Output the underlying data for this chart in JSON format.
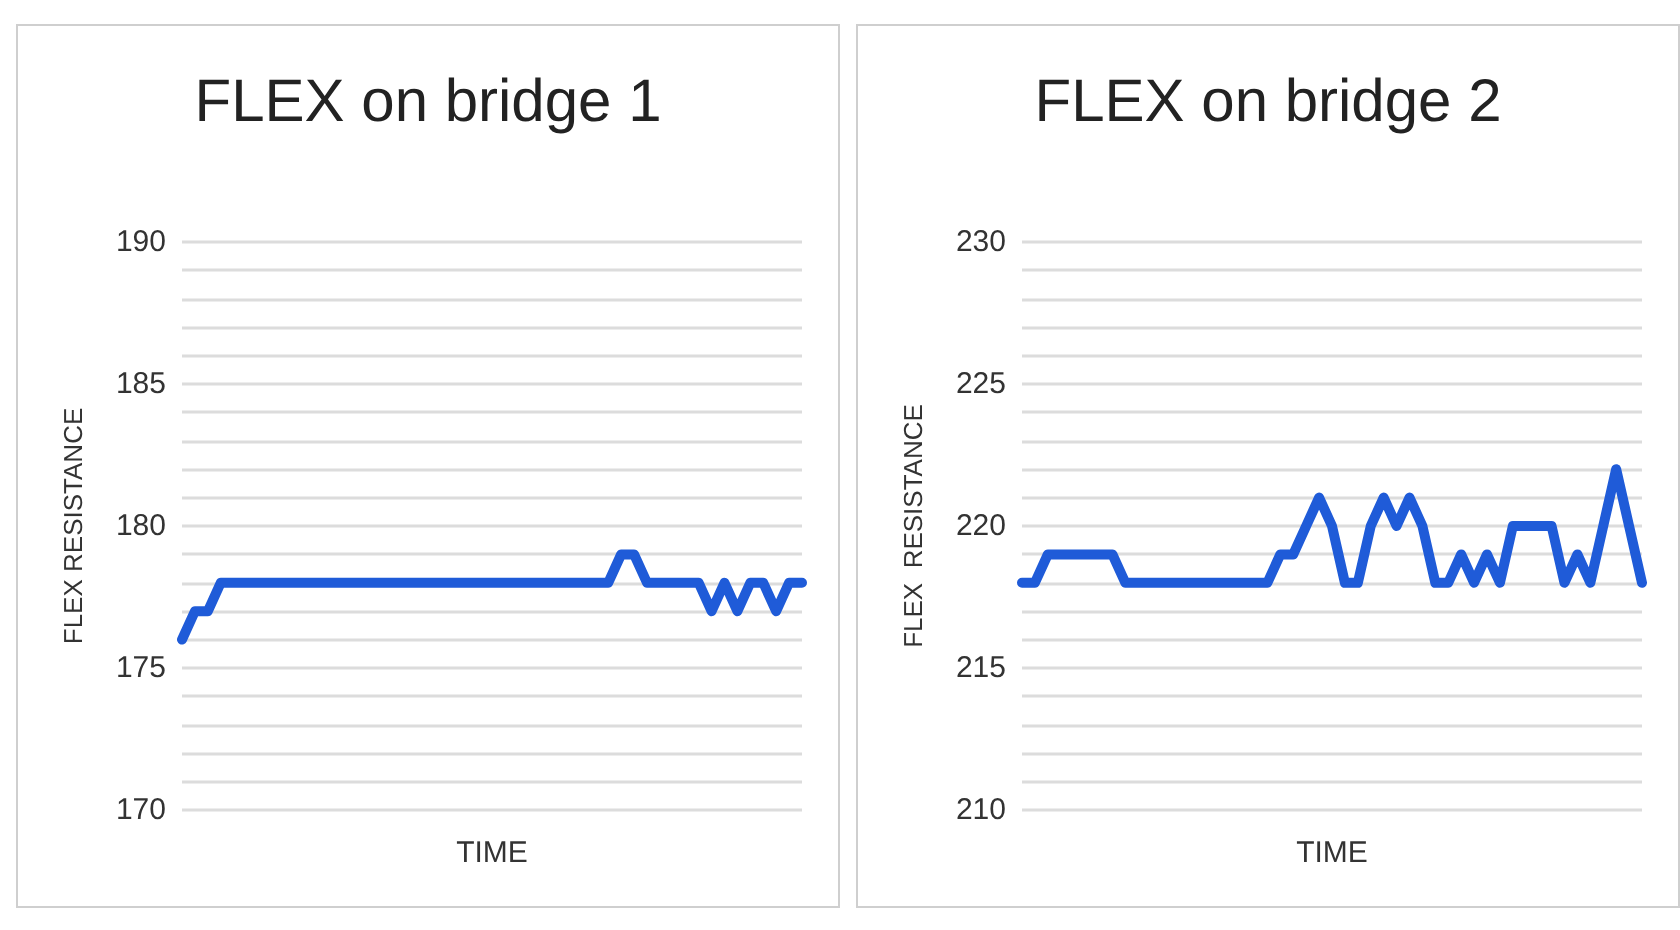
{
  "chart_data": [
    {
      "type": "line",
      "title": "FLEX on bridge 1",
      "xlabel": "TIME",
      "ylabel": "FLEX RESISTANCE",
      "grid": "y",
      "categories": [
        null,
        null,
        null,
        null,
        null,
        null,
        null,
        null,
        null,
        null,
        null,
        null,
        null,
        null,
        null,
        null,
        null,
        null,
        null,
        null,
        null,
        null,
        null,
        null,
        null,
        null,
        null,
        null,
        null,
        null,
        null,
        null,
        null,
        null,
        null,
        null,
        null,
        null,
        null,
        null,
        null,
        null,
        null,
        null,
        null,
        null,
        null,
        null,
        null
      ],
      "series": [
        {
          "color": "#1f5bd8",
          "values": [
            176,
            177,
            177,
            178,
            178,
            178,
            178,
            178,
            178,
            178,
            178,
            178,
            178,
            178,
            178,
            178,
            178,
            178,
            178,
            178,
            178,
            178,
            178,
            178,
            178,
            178,
            178,
            178,
            178,
            178,
            178,
            178,
            178,
            178,
            179,
            179,
            178,
            178,
            178,
            178,
            178,
            177,
            178,
            177,
            178,
            178,
            177,
            178,
            178
          ]
        }
      ],
      "ylim": [
        170,
        190
      ],
      "yticks": [
        170,
        {
          "value": 171,
          "label": null
        },
        {
          "value": 172,
          "label": null
        },
        {
          "value": 173,
          "label": null
        },
        {
          "value": 174,
          "label": null
        },
        175,
        {
          "value": 176,
          "label": null
        },
        {
          "value": 177,
          "label": null
        },
        {
          "value": 178,
          "label": null
        },
        {
          "value": 179,
          "label": null
        },
        180,
        {
          "value": 181,
          "label": null
        },
        {
          "value": 182,
          "label": null
        },
        {
          "value": 183,
          "label": null
        },
        {
          "value": 184,
          "label": null
        },
        185,
        {
          "value": 186,
          "label": null
        },
        {
          "value": 187,
          "label": null
        },
        {
          "value": 188,
          "label": null
        },
        {
          "value": 189,
          "label": null
        },
        190
      ],
      "tick_labels": "y",
      "line_style": "solid"
    },
    {
      "type": "line",
      "title": "FLEX on bridge 2",
      "xlabel": "TIME",
      "ylabel": "FLEX  RESISTANCE",
      "grid": "y",
      "categories": [
        null,
        null,
        null,
        null,
        null,
        null,
        null,
        null,
        null,
        null,
        null,
        null,
        null,
        null,
        null,
        null,
        null,
        null,
        null,
        null,
        null,
        null,
        null,
        null,
        null,
        null,
        null,
        null,
        null,
        null,
        null,
        null,
        null,
        null,
        null,
        null,
        null,
        null,
        null,
        null,
        null,
        null,
        null,
        null,
        null,
        null,
        null,
        null,
        null
      ],
      "series": [
        {
          "color": "#1f5bd8",
          "values": [
            218,
            218,
            219,
            219,
            219,
            219,
            219,
            219,
            218,
            218,
            218,
            218,
            218,
            218,
            218,
            218,
            218,
            218,
            218,
            218,
            219,
            219,
            220,
            221,
            220,
            218,
            218,
            220,
            221,
            220,
            221,
            220,
            218,
            218,
            219,
            218,
            219,
            218,
            220,
            220,
            220,
            220,
            218,
            219,
            218,
            220,
            222,
            220,
            218
          ]
        }
      ],
      "ylim": [
        210,
        230
      ],
      "yticks": [
        210,
        {
          "value": 211,
          "label": null
        },
        {
          "value": 212,
          "label": null
        },
        {
          "value": 213,
          "label": null
        },
        {
          "value": 214,
          "label": null
        },
        215,
        {
          "value": 216,
          "label": null
        },
        {
          "value": 217,
          "label": null
        },
        {
          "value": 218,
          "label": null
        },
        {
          "value": 219,
          "label": null
        },
        220,
        {
          "value": 221,
          "label": null
        },
        {
          "value": 222,
          "label": null
        },
        {
          "value": 223,
          "label": null
        },
        {
          "value": 224,
          "label": null
        },
        225,
        {
          "value": 226,
          "label": null
        },
        {
          "value": 227,
          "label": null
        },
        {
          "value": 228,
          "label": null
        },
        {
          "value": 229,
          "label": null
        },
        230
      ],
      "tick_labels": "y",
      "line_style": "solid"
    }
  ]
}
